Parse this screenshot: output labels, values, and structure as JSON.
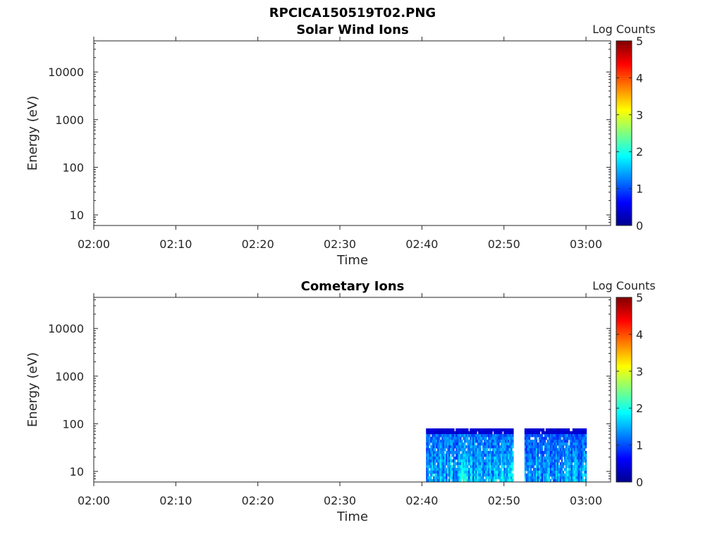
{
  "figure_title": "RPCICA150519T02.PNG",
  "chart_data": [
    {
      "type": "heatmap",
      "title": "Solar Wind Ions",
      "xlabel": "Time",
      "ylabel": "Energy (eV)",
      "x_tick_labels": [
        "02:00",
        "02:10",
        "02:20",
        "02:30",
        "02:40",
        "02:50",
        "03:00"
      ],
      "xlim": [
        "02:00",
        "03:03"
      ],
      "y_scale": "log",
      "y_tick_labels": [
        "10",
        "100",
        "1000",
        "10000"
      ],
      "ylim": [
        6,
        45000
      ],
      "colorbar": {
        "label": "Log Counts",
        "range": [
          0,
          5
        ],
        "tick_labels": [
          "0",
          "1",
          "2",
          "3",
          "4",
          "5"
        ],
        "colormap": "jet"
      },
      "blocks": []
    },
    {
      "type": "heatmap",
      "title": "Cometary Ions",
      "xlabel": "Time",
      "ylabel": "Energy (eV)",
      "x_tick_labels": [
        "02:00",
        "02:10",
        "02:20",
        "02:30",
        "02:40",
        "02:50",
        "03:00"
      ],
      "xlim": [
        "02:00",
        "03:03"
      ],
      "y_scale": "log",
      "y_tick_labels": [
        "10",
        "100",
        "1000",
        "10000"
      ],
      "ylim": [
        6,
        45000
      ],
      "colorbar": {
        "label": "Log Counts",
        "range": [
          0,
          5
        ],
        "tick_labels": [
          "0",
          "1",
          "2",
          "3",
          "4",
          "5"
        ],
        "colormap": "jet"
      },
      "blocks": [
        {
          "t_start": "02:40:30",
          "t_end": "02:51:00",
          "e_min": 6,
          "e_max": 80,
          "log_counts_low": 0.3,
          "log_counts_high": 2.2
        },
        {
          "t_start": "02:52:30",
          "t_end": "03:00:00",
          "e_min": 6,
          "e_max": 80,
          "log_counts_low": 0.3,
          "log_counts_high": 2.0
        }
      ]
    }
  ]
}
